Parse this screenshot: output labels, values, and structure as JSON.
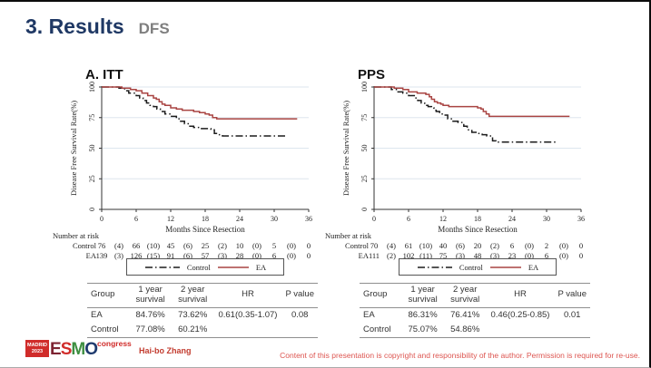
{
  "slide": {
    "title": "3. Results",
    "subtitle": "DFS",
    "title_color": "#1f3864",
    "subtitle_color": "#7f7f7f"
  },
  "colors": {
    "ea": "#a94442",
    "control": "#1c1c1c",
    "grid": "#dde6ee",
    "axis": "#333333"
  },
  "chart_data": [
    {
      "type": "line",
      "title": "A. ITT",
      "xlabel": "Months Since Resection",
      "ylabel": "Disease Free Survival Rate(%)",
      "xlim": [
        0,
        36
      ],
      "ylim": [
        0,
        100
      ],
      "x_ticks": [
        0,
        6,
        12,
        18,
        24,
        30,
        36
      ],
      "y_ticks": [
        0,
        25,
        50,
        75,
        100
      ],
      "step": true,
      "grid": "horizontal",
      "series": [
        {
          "name": "Control",
          "style": "dashed",
          "color": "#1c1c1c",
          "points": [
            [
              0,
              100
            ],
            [
              3,
              99
            ],
            [
              4,
              97
            ],
            [
              4.7,
              95
            ],
            [
              6,
              93
            ],
            [
              6.6,
              91
            ],
            [
              7.2,
              89
            ],
            [
              7.8,
              87
            ],
            [
              8.4,
              85
            ],
            [
              9,
              84
            ],
            [
              9.6,
              82
            ],
            [
              10.2,
              80
            ],
            [
              11,
              78
            ],
            [
              12,
              76
            ],
            [
              13,
              74
            ],
            [
              13.6,
              72
            ],
            [
              14.4,
              70
            ],
            [
              15.2,
              68
            ],
            [
              16,
              67
            ],
            [
              17,
              66
            ],
            [
              19,
              65
            ],
            [
              19.6,
              62
            ],
            [
              20.3,
              61
            ],
            [
              21,
              60
            ],
            [
              32,
              60
            ]
          ]
        },
        {
          "name": "EA",
          "style": "solid",
          "color": "#a94442",
          "points": [
            [
              0,
              100
            ],
            [
              3.5,
              99
            ],
            [
              5,
              98
            ],
            [
              6,
              97
            ],
            [
              7,
              95
            ],
            [
              8,
              93
            ],
            [
              9,
              91
            ],
            [
              9.5,
              90
            ],
            [
              10,
              88
            ],
            [
              10.5,
              86
            ],
            [
              11,
              85
            ],
            [
              12,
              83
            ],
            [
              13,
              82
            ],
            [
              14,
              81
            ],
            [
              16,
              80
            ],
            [
              17,
              79
            ],
            [
              18,
              78
            ],
            [
              18.7,
              77
            ],
            [
              19.3,
              75
            ],
            [
              20,
              74
            ],
            [
              34,
              74
            ]
          ]
        }
      ]
    },
    {
      "type": "line",
      "title": "PPS",
      "xlabel": "Months Since Resection",
      "ylabel": "Disease Free Survival Rate(%)",
      "xlim": [
        0,
        36
      ],
      "ylim": [
        0,
        100
      ],
      "x_ticks": [
        0,
        6,
        12,
        18,
        24,
        30,
        36
      ],
      "y_ticks": [
        0,
        25,
        50,
        75,
        100
      ],
      "step": true,
      "grid": "horizontal",
      "series": [
        {
          "name": "Control",
          "style": "dashed",
          "color": "#1c1c1c",
          "points": [
            [
              0,
              100
            ],
            [
              3,
              98
            ],
            [
              4,
              96
            ],
            [
              5,
              95
            ],
            [
              6,
              93
            ],
            [
              7,
              91
            ],
            [
              7.6,
              89
            ],
            [
              8.2,
              87
            ],
            [
              8.8,
              85
            ],
            [
              9.4,
              84
            ],
            [
              10,
              83
            ],
            [
              10.4,
              81
            ],
            [
              10.8,
              80
            ],
            [
              11.4,
              78
            ],
            [
              12,
              77
            ],
            [
              12.8,
              74
            ],
            [
              13.6,
              72
            ],
            [
              14.6,
              71
            ],
            [
              15.6,
              68
            ],
            [
              16.2,
              65
            ],
            [
              17,
              63
            ],
            [
              18,
              62
            ],
            [
              18.8,
              61
            ],
            [
              19.6,
              60
            ],
            [
              20.6,
              56
            ],
            [
              21.2,
              55
            ],
            [
              32,
              55
            ]
          ]
        },
        {
          "name": "EA",
          "style": "solid",
          "color": "#a94442",
          "points": [
            [
              0,
              100
            ],
            [
              3.5,
              99
            ],
            [
              5,
              98
            ],
            [
              6,
              96
            ],
            [
              7.5,
              95
            ],
            [
              9,
              94
            ],
            [
              9.6,
              92
            ],
            [
              10,
              90
            ],
            [
              10.5,
              88
            ],
            [
              11,
              87
            ],
            [
              11.6,
              86
            ],
            [
              12,
              85
            ],
            [
              13,
              84
            ],
            [
              17.5,
              84
            ],
            [
              18,
              83
            ],
            [
              18.6,
              82
            ],
            [
              19,
              80
            ],
            [
              19.5,
              78
            ],
            [
              20,
              76
            ],
            [
              34,
              76
            ]
          ]
        }
      ]
    }
  ],
  "panels": [
    {
      "label": "A. ITT",
      "number_at_risk": {
        "label": "Number at risk",
        "rows": [
          {
            "name": "Control",
            "values": [
              "76",
              "(4)",
              "66",
              "(10)",
              "45",
              "(6)",
              "25",
              "(2)",
              "10",
              "(0)",
              "5",
              "(0)",
              "0"
            ]
          },
          {
            "name": "EA",
            "values": [
              "139",
              "(3)",
              "126",
              "(15)",
              "91",
              "(6)",
              "57",
              "(3)",
              "28",
              "(0)",
              "6",
              "(0)",
              "0"
            ]
          }
        ]
      },
      "legend": {
        "control_label": "Control",
        "ea_label": "EA"
      },
      "stats": {
        "headers": [
          "Group",
          "1 year survival",
          "2 year survival",
          "HR",
          "P value"
        ],
        "rows": [
          [
            "EA",
            "84.76%",
            "73.62%",
            "0.61(0.35-1.07)",
            "0.08"
          ],
          [
            "Control",
            "77.08%",
            "60.21%",
            "",
            ""
          ]
        ]
      }
    },
    {
      "label": "PPS",
      "number_at_risk": {
        "label": "Number at risk",
        "rows": [
          {
            "name": "Control",
            "values": [
              "70",
              "(4)",
              "61",
              "(10)",
              "40",
              "(6)",
              "20",
              "(2)",
              "6",
              "(0)",
              "2",
              "(0)",
              "0"
            ]
          },
          {
            "name": "EA",
            "values": [
              "111",
              "(2)",
              "102",
              "(11)",
              "75",
              "(3)",
              "48",
              "(3)",
              "23",
              "(0)",
              "6",
              "(0)",
              "0"
            ]
          }
        ]
      },
      "legend": {
        "control_label": "Control",
        "ea_label": "EA"
      },
      "stats": {
        "headers": [
          "Group",
          "1 year survival",
          "2 year survival",
          "HR",
          "P value"
        ],
        "rows": [
          [
            "EA",
            "86.31%",
            "76.41%",
            "0.46(0.25-0.85)",
            "0.01"
          ],
          [
            "Control",
            "75.07%",
            "54.86%",
            "",
            ""
          ]
        ]
      }
    }
  ],
  "footer": {
    "badge_line1": "MADRID",
    "badge_line2": "2023",
    "logo_letters": [
      {
        "char": "E",
        "color": "#7d2332"
      },
      {
        "char": "S",
        "color": "#d02c2a"
      },
      {
        "char": "M",
        "color": "#3e8f41"
      },
      {
        "char": "O",
        "color": "#1e3a6e"
      }
    ],
    "logo_suffix": "congress",
    "presenter": "Hai-bo Zhang",
    "copyright": "Content of this presentation is copyright and responsibility of the author. Permission is required for re-use."
  }
}
